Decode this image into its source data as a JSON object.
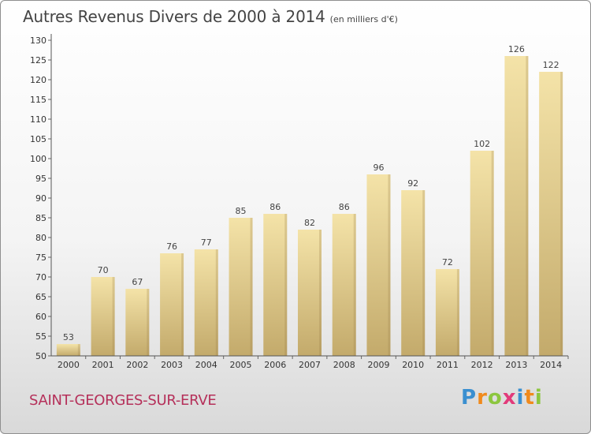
{
  "title": "Autres Revenus Divers de 2000 à 2014",
  "subtitle": "(en milliers d'€)",
  "commune": "SAINT-GEORGES-SUR-ERVE",
  "logo": {
    "letters": [
      "P",
      "r",
      "o",
      "x",
      "i",
      "t",
      "i"
    ],
    "colors": [
      "#3a8fd0",
      "#f08a1c",
      "#8cc63f",
      "#e23a7a",
      "#3a8fd0",
      "#f08a1c",
      "#8cc63f"
    ]
  },
  "colors": {
    "bar_light": "#f3e1a6",
    "bar_dark": "#c2a96a",
    "axis": "#555555",
    "grid_tick": "#666666",
    "title": "#444444",
    "commune": "#b5305a"
  },
  "chart_data": {
    "type": "bar",
    "title": "Autres Revenus Divers de 2000 à 2014",
    "subtitle": "(en milliers d'€)",
    "categories": [
      "2000",
      "2001",
      "2002",
      "2003",
      "2004",
      "2005",
      "2006",
      "2007",
      "2008",
      "2009",
      "2010",
      "2011",
      "2012",
      "2013",
      "2014"
    ],
    "values": [
      53,
      70,
      67,
      76,
      77,
      85,
      86,
      82,
      86,
      96,
      92,
      72,
      102,
      126,
      122
    ],
    "ylim": [
      50,
      130
    ],
    "yticks": [
      50,
      55,
      60,
      65,
      70,
      75,
      80,
      85,
      90,
      95,
      100,
      105,
      110,
      115,
      120,
      125,
      130
    ],
    "data_labels": true,
    "grid": false,
    "legend": "none"
  }
}
